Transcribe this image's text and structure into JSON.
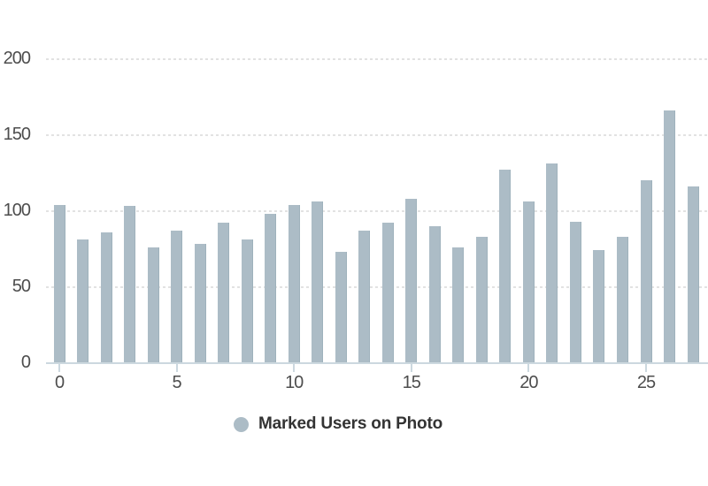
{
  "chart_data": {
    "type": "bar",
    "title": "",
    "xlabel": "",
    "ylabel": "",
    "series_name": "Marked Users on Photo",
    "x": [
      0,
      1,
      2,
      3,
      4,
      5,
      6,
      7,
      8,
      9,
      10,
      11,
      12,
      13,
      14,
      15,
      16,
      17,
      18,
      19,
      20,
      21,
      22,
      23,
      24,
      25,
      26,
      27
    ],
    "values": [
      104,
      81,
      86,
      103,
      76,
      87,
      78,
      92,
      81,
      98,
      104,
      106,
      73,
      87,
      92,
      108,
      90,
      76,
      83,
      127,
      106,
      131,
      93,
      74,
      83,
      120,
      166,
      116
    ],
    "x_ticks": [
      0,
      5,
      10,
      15,
      20,
      25
    ],
    "y_ticks": [
      0,
      50,
      100,
      150,
      200
    ],
    "ylim": [
      0,
      200
    ],
    "grid": "horizontal-dashed",
    "legend_position": "bottom-center",
    "colors": {
      "bar_fill": "#acbcc6",
      "bar_edge": "#9fb2bc",
      "axis_line": "#ccd8df",
      "gridline": "#e2e2e2",
      "tick_label_text": "#4d4d4d",
      "legend_text": "#333333",
      "background": "#ffffff"
    }
  }
}
